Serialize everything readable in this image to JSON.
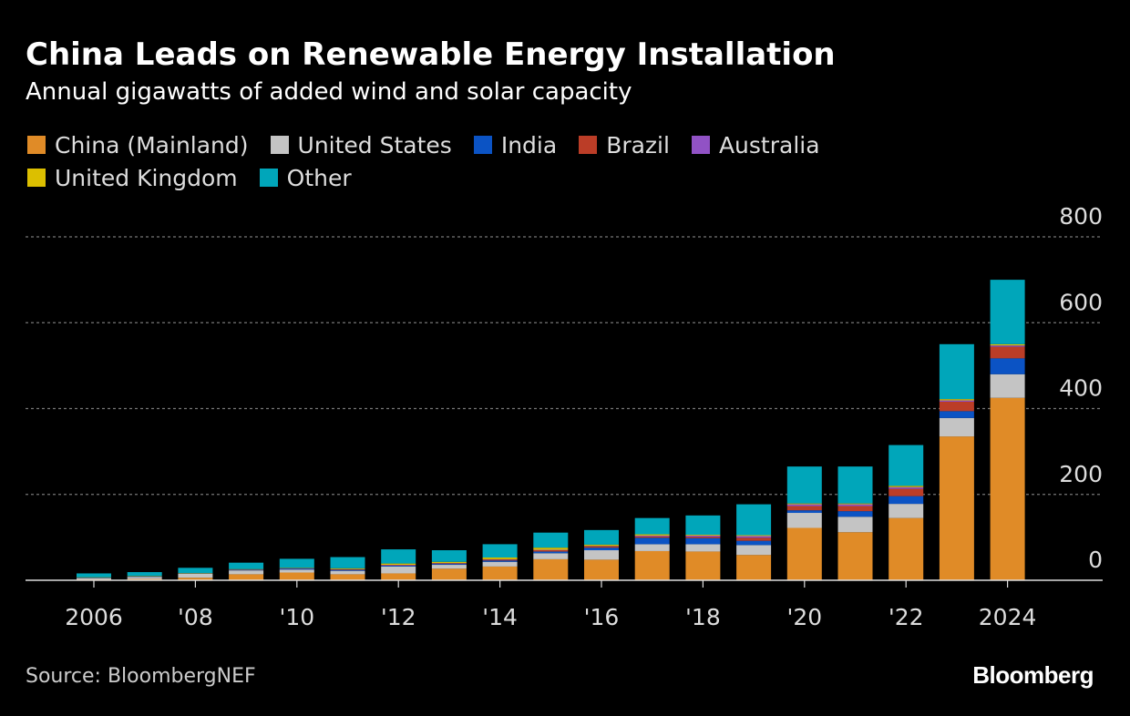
{
  "title": "China Leads on Renewable Energy Installation",
  "subtitle": "Annual gigawatts of added wind and solar capacity",
  "source": "Source: BloombergNEF",
  "brand": "Bloomberg",
  "colors": {
    "background": "#000000",
    "grid": "#777777",
    "axis": "#dddddd",
    "text": "#ffffff"
  },
  "legend": [
    {
      "name": "China (Mainland)",
      "color": "#e08b27"
    },
    {
      "name": "United States",
      "color": "#c4c4c4"
    },
    {
      "name": "India",
      "color": "#0b53c4"
    },
    {
      "name": "Brazil",
      "color": "#bb3d27"
    },
    {
      "name": "Australia",
      "color": "#9152c5"
    },
    {
      "name": "United Kingdom",
      "color": "#dcbf00"
    },
    {
      "name": "Other",
      "color": "#00a6ba"
    }
  ],
  "chart_data": {
    "type": "bar",
    "stacked": true,
    "title": "China Leads on Renewable Energy Installation",
    "subtitle": "Annual gigawatts of added wind and solar capacity",
    "xlabel": "",
    "ylabel": "",
    "ylim": [
      0,
      800
    ],
    "yticks": [
      0,
      200,
      400,
      600,
      800
    ],
    "grid": true,
    "legend_position": "top",
    "categories": [
      "2006",
      "2007",
      "2008",
      "2009",
      "2010",
      "2011",
      "2012",
      "2013",
      "2014",
      "2015",
      "2016",
      "2017",
      "2018",
      "2019",
      "2020",
      "2021",
      "2022",
      "2023",
      "2024"
    ],
    "xtick_labels": [
      {
        "category": "2006",
        "label": "2006"
      },
      {
        "category": "2008",
        "label": "'08"
      },
      {
        "category": "2010",
        "label": "'10"
      },
      {
        "category": "2012",
        "label": "'12"
      },
      {
        "category": "2014",
        "label": "'14"
      },
      {
        "category": "2016",
        "label": "'16"
      },
      {
        "category": "2018",
        "label": "'18"
      },
      {
        "category": "2020",
        "label": "'20"
      },
      {
        "category": "2022",
        "label": "'22"
      },
      {
        "category": "2024",
        "label": "2024"
      }
    ],
    "series": [
      {
        "name": "China (Mainland)",
        "color": "#e08b27",
        "values": [
          2,
          3,
          6,
          14,
          18,
          14,
          16,
          27,
          32,
          49,
          48,
          68,
          67,
          59,
          122,
          112,
          145,
          335,
          425
        ]
      },
      {
        "name": "United States",
        "color": "#c4c4c4",
        "values": [
          3,
          5,
          9,
          9,
          7,
          8,
          16,
          9,
          11,
          14,
          22,
          16,
          17,
          23,
          35,
          36,
          33,
          43,
          55
        ]
      },
      {
        "name": "India",
        "color": "#0b53c4",
        "values": [
          1,
          1,
          1,
          1,
          2,
          2,
          2,
          2,
          3,
          4,
          6,
          15,
          14,
          10,
          6,
          13,
          18,
          16,
          37
        ]
      },
      {
        "name": "Brazil",
        "color": "#bb3d27",
        "values": [
          0,
          0,
          0,
          0,
          0,
          1,
          1,
          1,
          2,
          3,
          3,
          3,
          3,
          7,
          10,
          12,
          17,
          22,
          27
        ]
      },
      {
        "name": "Australia",
        "color": "#9152c5",
        "values": [
          0,
          0,
          0,
          1,
          1,
          1,
          1,
          1,
          1,
          1,
          1,
          2,
          3,
          4,
          4,
          4,
          4,
          3,
          3
        ]
      },
      {
        "name": "United Kingdom",
        "color": "#dcbf00",
        "values": [
          1,
          1,
          1,
          1,
          1,
          2,
          3,
          3,
          4,
          5,
          3,
          3,
          2,
          2,
          2,
          2,
          3,
          3,
          3
        ]
      },
      {
        "name": "Other",
        "color": "#00a6ba",
        "values": [
          9,
          9,
          12,
          15,
          21,
          26,
          33,
          27,
          31,
          35,
          34,
          38,
          45,
          72,
          86,
          86,
          95,
          128,
          150
        ]
      }
    ]
  }
}
